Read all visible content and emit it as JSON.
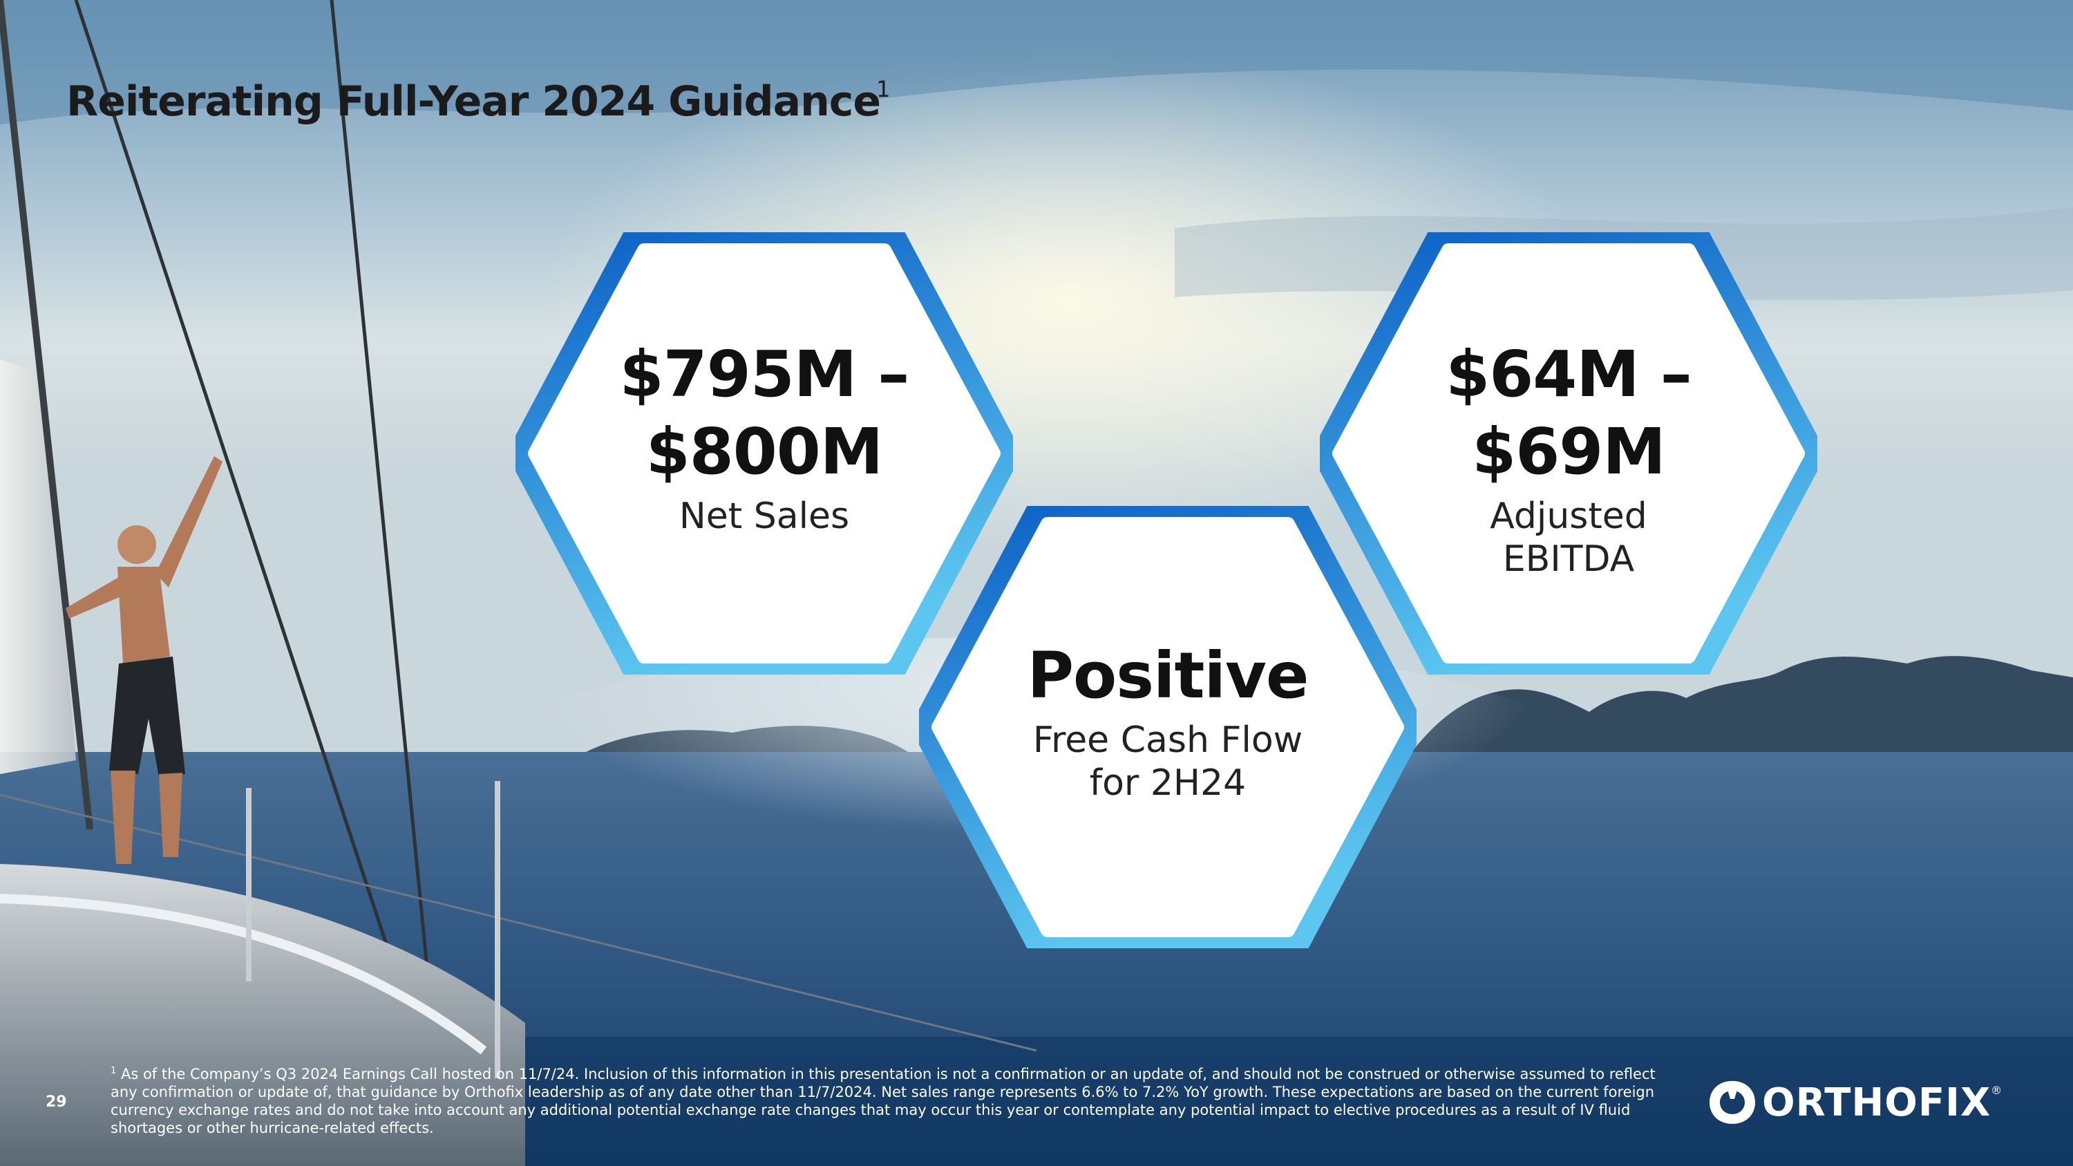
{
  "slide": {
    "title": "Reiterating Full-Year 2024 Guidance",
    "title_footnote_marker": "1",
    "page_number": "29"
  },
  "guidance": [
    {
      "value_line1": "$795M –",
      "value_line2": "$800M",
      "label_line1": "Net Sales",
      "label_line2": ""
    },
    {
      "value_line1": "$64M –",
      "value_line2": "$69M",
      "label_line1": "Adjusted",
      "label_line2": "EBITDA"
    },
    {
      "value_line1": "Positive",
      "value_line2": "",
      "label_line1": "Free Cash Flow",
      "label_line2": "for 2H24"
    }
  ],
  "footnote": {
    "marker": "1",
    "text": "As of the Company’s Q3 2024 Earnings Call hosted on 11/7/24. Inclusion of this information in this presentation is not a confirmation or an update of, and should not be construed or otherwise assumed to reflect any confirmation or update of, that guidance by Orthofix leadership as of any date other than 11/7/2024. Net sales range represents 6.6% to 7.2% YoY growth. These expectations are based on the current foreign currency exchange rates and do not take into account any additional potential exchange rate changes that may occur this year or contemplate any potential impact to elective procedures as a result of IV fluid shortages or other hurricane-related effects."
  },
  "logo": {
    "wordmark": "ORTHOFIX",
    "registered": "®"
  },
  "colors": {
    "hex_border_top": "#0a5ec4",
    "hex_border_bottom": "#5cc6f0",
    "text_dark": "#111111"
  }
}
